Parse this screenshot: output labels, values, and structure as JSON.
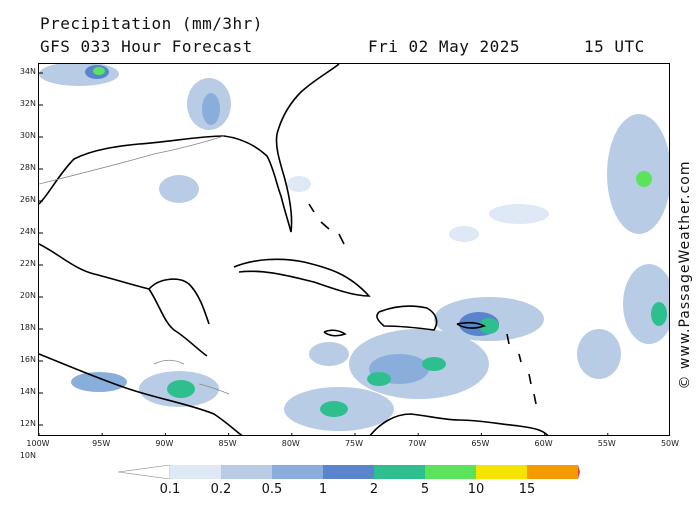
{
  "header": {
    "title": "Precipitation (mm/3hr)",
    "model": "GFS 033 Hour Forecast",
    "date": "Fri 02 May 2025",
    "time": "15 UTC"
  },
  "credit": "© www.PassageWeather.com",
  "lat_labels": [
    "34N",
    "32N",
    "30N",
    "28N",
    "26N",
    "24N",
    "22N",
    "20N",
    "18N",
    "16N",
    "14N",
    "12N",
    "10N"
  ],
  "lon_labels": [
    "100W",
    "95W",
    "90W",
    "85W",
    "80W",
    "75W",
    "70W",
    "65W",
    "60W",
    "55W",
    "50W"
  ],
  "colorbar": {
    "labels": [
      "0.1",
      "0.2",
      "0.5",
      "1",
      "2",
      "5",
      "10",
      "15"
    ],
    "colors": [
      "#ffffff",
      "#dfe8f5",
      "#b9cce6",
      "#8aaedb",
      "#5a84cc",
      "#2fbf8f",
      "#5be35b",
      "#f5e400",
      "#f59a00",
      "#e53a3a"
    ]
  }
}
